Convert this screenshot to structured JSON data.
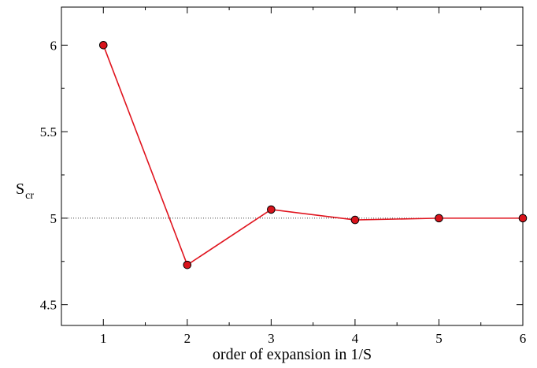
{
  "chart_data": {
    "type": "line",
    "xlabel": "order of expansion in 1/S",
    "ylabel": {
      "main": "S",
      "sub": "cr"
    },
    "xlim": [
      0.5,
      6
    ],
    "ylim": [
      4.38,
      6.22
    ],
    "xticks": [
      1,
      2,
      3,
      4,
      5,
      6
    ],
    "xtick_labels": [
      "1",
      "2",
      "3",
      "4",
      "5",
      "6"
    ],
    "yticks": [
      4.5,
      5,
      5.5,
      6
    ],
    "ytick_labels": [
      "4.5",
      "5",
      "5.5",
      "6"
    ],
    "reference_line": {
      "y": 5,
      "style": "dotted"
    },
    "series": [
      {
        "x": [
          1,
          2,
          3,
          4,
          5,
          6
        ],
        "y": [
          6.0,
          4.73,
          5.05,
          4.99,
          5.0,
          5.0
        ]
      }
    ],
    "colors": {
      "line": "#e0141e",
      "marker_fill": "#d8131b",
      "marker_stroke": "#000000"
    },
    "grid": false
  }
}
